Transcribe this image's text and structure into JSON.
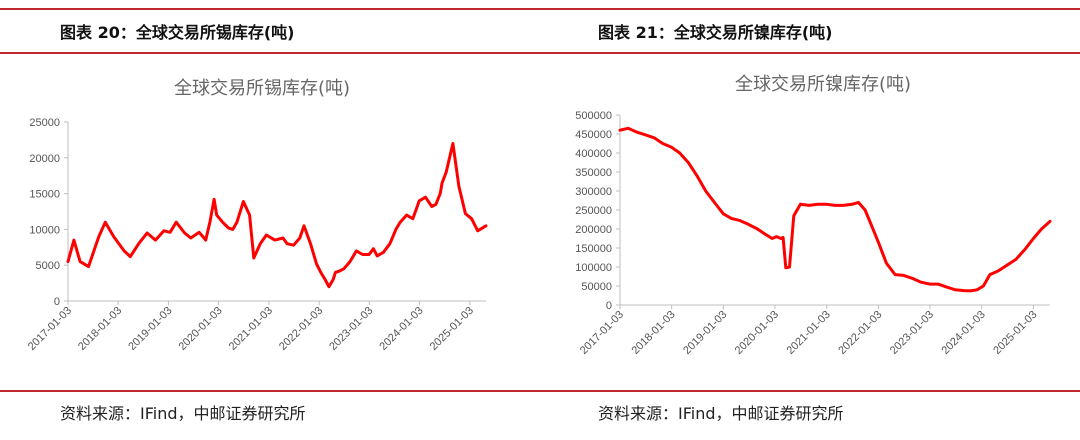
{
  "panels": [
    {
      "heading": "图表 20：全球交易所锡库存(吨)",
      "source": "资料来源：IFind，中邮证券研究所"
    },
    {
      "heading": "图表 21：全球交易所镍库存(吨)",
      "source": "资料来源：IFind，中邮证券研究所"
    }
  ],
  "colors": {
    "accent": "#c0272d",
    "series": "#ff0000",
    "axis": "#bfbfbf"
  },
  "chart_data": [
    {
      "type": "line",
      "title": "全球交易所锡库存(吨)",
      "xlabel": "",
      "ylabel": "",
      "ylim": [
        0,
        25000
      ],
      "yticks": [
        "0",
        "5000",
        "10000",
        "15000",
        "20000",
        "25000"
      ],
      "xticks": [
        "2017-01-03",
        "2018-01-03",
        "2019-01-03",
        "2020-01-03",
        "2021-01-03",
        "2022-01-03",
        "2023-01-03",
        "2024-01-03",
        "2025-01-03"
      ],
      "xrange": [
        "2017-01-03",
        "2025-04-30"
      ],
      "grid": false,
      "series": [
        {
          "name": "",
          "x": [
            "2017-01-03",
            "2017-02-15",
            "2017-04-01",
            "2017-06-01",
            "2017-08-15",
            "2017-10-01",
            "2017-12-01",
            "2018-02-15",
            "2018-04-01",
            "2018-06-01",
            "2018-08-01",
            "2018-10-01",
            "2018-12-01",
            "2019-01-15",
            "2019-03-01",
            "2019-05-01",
            "2019-06-15",
            "2019-08-15",
            "2019-10-01",
            "2019-11-01",
            "2019-12-01",
            "2019-12-20",
            "2020-02-01",
            "2020-03-15",
            "2020-04-15",
            "2020-05-15",
            "2020-07-01",
            "2020-08-15",
            "2020-09-15",
            "2020-11-01",
            "2020-12-15",
            "2021-02-15",
            "2021-04-15",
            "2021-05-15",
            "2021-07-01",
            "2021-08-15",
            "2021-09-15",
            "2021-11-01",
            "2021-12-15",
            "2022-01-15",
            "2022-02-15",
            "2022-03-15",
            "2022-04-15",
            "2022-05-01",
            "2022-06-01",
            "2022-07-01",
            "2022-08-15",
            "2022-10-01",
            "2022-11-15",
            "2023-01-01",
            "2023-02-01",
            "2023-03-01",
            "2023-04-15",
            "2023-06-01",
            "2023-07-15",
            "2023-08-15",
            "2023-10-01",
            "2023-11-15",
            "2024-01-01",
            "2024-02-15",
            "2024-04-01",
            "2024-05-01",
            "2024-06-01",
            "2024-06-15",
            "2024-07-15",
            "2024-09-01",
            "2024-10-15",
            "2024-12-01",
            "2025-01-15",
            "2025-03-01",
            "2025-04-30"
          ],
          "values": [
            5500,
            8500,
            5500,
            4800,
            9000,
            11000,
            9000,
            7000,
            6200,
            8000,
            9500,
            8500,
            9800,
            9600,
            11000,
            9500,
            8800,
            9600,
            8500,
            11000,
            14200,
            12000,
            11000,
            10200,
            10000,
            11000,
            13900,
            12000,
            6000,
            8000,
            9200,
            8500,
            8800,
            8000,
            7800,
            8800,
            10500,
            8000,
            5200,
            4000,
            3000,
            2000,
            3000,
            4000,
            4200,
            4500,
            5500,
            7000,
            6500,
            6500,
            7300,
            6300,
            6800,
            8000,
            10000,
            11000,
            12000,
            11500,
            14000,
            14500,
            13200,
            13500,
            15000,
            16500,
            18000,
            22000,
            16000,
            12200,
            11500,
            9800,
            10500
          ]
        }
      ]
    },
    {
      "type": "line",
      "title": "全球交易所镍库存(吨)",
      "xlabel": "",
      "ylabel": "",
      "ylim": [
        0,
        500000
      ],
      "yticks": [
        "0",
        "50000",
        "100000",
        "150000",
        "200000",
        "250000",
        "300000",
        "350000",
        "400000",
        "450000",
        "500000"
      ],
      "xticks": [
        "2017-01-03",
        "2018-01-03",
        "2019-01-03",
        "2020-01-03",
        "2021-01-03",
        "2022-01-03",
        "2023-01-03",
        "2024-01-03",
        "2025-01-03"
      ],
      "xrange": [
        "2017-01-03",
        "2025-04-30"
      ],
      "grid": false,
      "series": [
        {
          "name": "",
          "x": [
            "2017-01-03",
            "2017-03-01",
            "2017-05-01",
            "2017-07-01",
            "2017-09-01",
            "2017-11-01",
            "2018-01-03",
            "2018-03-01",
            "2018-05-01",
            "2018-07-01",
            "2018-09-01",
            "2018-11-01",
            "2019-01-03",
            "2019-03-01",
            "2019-05-01",
            "2019-07-01",
            "2019-09-01",
            "2019-11-01",
            "2019-12-15",
            "2020-01-15",
            "2020-02-15",
            "2020-03-01",
            "2020-03-20",
            "2020-04-15",
            "2020-05-15",
            "2020-07-01",
            "2020-09-01",
            "2020-11-01",
            "2021-01-03",
            "2021-03-01",
            "2021-05-01",
            "2021-07-01",
            "2021-08-15",
            "2021-10-01",
            "2021-11-15",
            "2022-01-03",
            "2022-03-01",
            "2022-05-01",
            "2022-07-01",
            "2022-09-01",
            "2022-11-01",
            "2023-01-03",
            "2023-03-01",
            "2023-05-01",
            "2023-07-01",
            "2023-09-01",
            "2023-10-15",
            "2023-12-01",
            "2024-01-15",
            "2024-03-01",
            "2024-05-01",
            "2024-07-01",
            "2024-09-01",
            "2024-11-01",
            "2025-01-03",
            "2025-03-01",
            "2025-04-30"
          ],
          "values": [
            460000,
            465000,
            455000,
            448000,
            440000,
            425000,
            415000,
            400000,
            375000,
            340000,
            300000,
            270000,
            240000,
            228000,
            222000,
            212000,
            200000,
            185000,
            175000,
            180000,
            175000,
            178000,
            98000,
            100000,
            235000,
            265000,
            262000,
            265000,
            265000,
            262000,
            262000,
            265000,
            270000,
            250000,
            210000,
            165000,
            110000,
            80000,
            78000,
            70000,
            60000,
            55000,
            55000,
            47000,
            40000,
            38000,
            37000,
            40000,
            50000,
            80000,
            90000,
            105000,
            120000,
            145000,
            175000,
            200000,
            220000
          ]
        }
      ]
    }
  ]
}
